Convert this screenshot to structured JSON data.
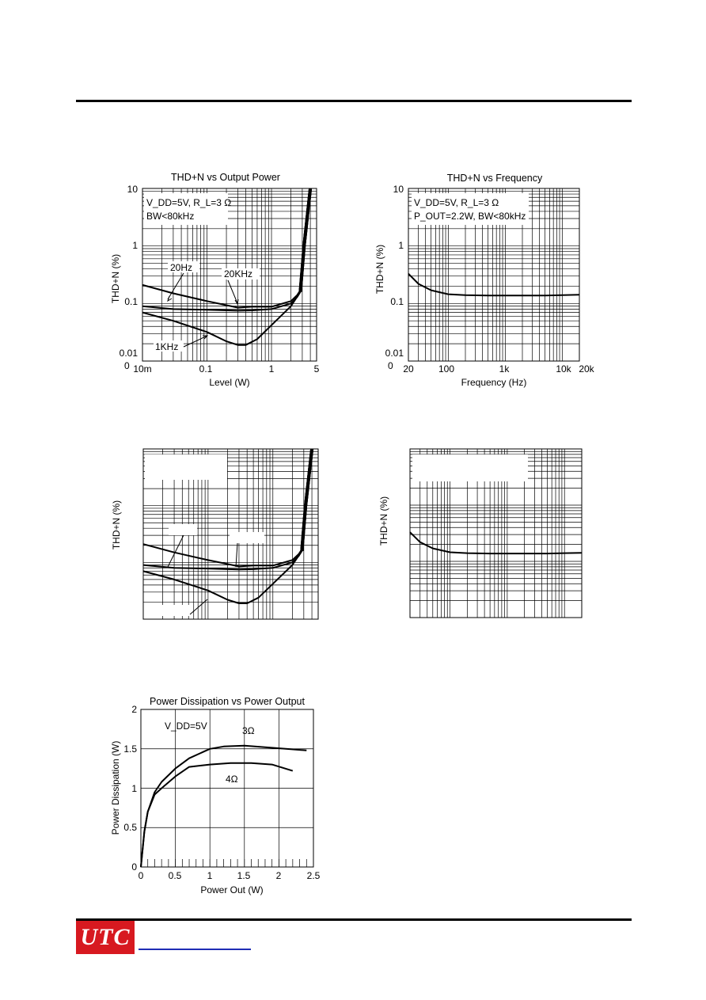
{
  "header": {},
  "footer": {
    "logo_text": "UTC"
  },
  "chart_data": [
    {
      "type": "line",
      "title": "THD+N vs Output Power",
      "xlabel": "Level (W)",
      "ylabel": "THD+N (%)",
      "xscale": "log",
      "yscale": "log",
      "x_ticks": [
        "10m",
        "0.1",
        "1",
        "5"
      ],
      "y_ticks": [
        "10",
        "1",
        "0.1",
        "0.01",
        "0"
      ],
      "annotation": [
        "V_DD=5V, R_L=3 Ω",
        "BW<80kHz"
      ],
      "series": [
        {
          "name": "20Hz",
          "x": [
            0.01,
            0.03,
            0.1,
            0.3,
            0.5,
            1,
            2,
            2.5,
            2.8,
            3.2,
            4
          ],
          "y": [
            0.21,
            0.15,
            0.11,
            0.085,
            0.088,
            0.088,
            0.11,
            0.14,
            0.17,
            1,
            10
          ]
        },
        {
          "name": "20KHz",
          "x": [
            0.01,
            0.03,
            0.1,
            0.3,
            0.5,
            1,
            2,
            2.5,
            2.8,
            3.2,
            4
          ],
          "y": [
            0.09,
            0.08,
            0.078,
            0.075,
            0.076,
            0.08,
            0.1,
            0.13,
            0.16,
            1,
            10
          ]
        },
        {
          "name": "1KHz",
          "x": [
            0.01,
            0.03,
            0.1,
            0.2,
            0.3,
            0.4,
            0.6,
            1,
            2,
            2.8,
            3.2,
            4
          ],
          "y": [
            0.07,
            0.05,
            0.032,
            0.022,
            0.019,
            0.019,
            0.024,
            0.042,
            0.09,
            0.16,
            1,
            10
          ]
        }
      ]
    },
    {
      "type": "line",
      "title": "THD+N vs Frequency",
      "xlabel": "Frequency (Hz)",
      "ylabel": "THD+N (%)",
      "xscale": "log",
      "yscale": "log",
      "x_ticks": [
        "20",
        "100",
        "1k",
        "10k",
        "20k"
      ],
      "y_ticks": [
        "10",
        "1",
        "0.1",
        "0.01",
        "0"
      ],
      "annotation": [
        "V_DD=5V, R_L=3 Ω",
        "P_OUT=2.2W, BW<80kHz"
      ],
      "series": [
        {
          "name": "",
          "x": [
            20,
            30,
            50,
            100,
            200,
            500,
            1000,
            5000,
            10000,
            20000
          ],
          "y": [
            0.33,
            0.22,
            0.17,
            0.145,
            0.14,
            0.138,
            0.138,
            0.138,
            0.14,
            0.142
          ]
        }
      ]
    },
    {
      "type": "line",
      "title": "",
      "ylabel": "THD+N (%)",
      "series": [
        {
          "name": "",
          "x": [
            0.01,
            0.03,
            0.1,
            0.3,
            0.5,
            1,
            2,
            2.5,
            2.8,
            3.2,
            4
          ],
          "y": [
            0.21,
            0.15,
            0.11,
            0.085,
            0.088,
            0.088,
            0.11,
            0.14,
            0.17,
            1,
            10
          ]
        },
        {
          "name": "",
          "x": [
            0.01,
            0.03,
            0.1,
            0.3,
            0.5,
            1,
            2,
            2.5,
            2.8,
            3.2,
            4
          ],
          "y": [
            0.09,
            0.08,
            0.078,
            0.075,
            0.076,
            0.08,
            0.1,
            0.13,
            0.16,
            1,
            10
          ]
        },
        {
          "name": "",
          "x": [
            0.01,
            0.03,
            0.1,
            0.2,
            0.3,
            0.4,
            0.6,
            1,
            2,
            2.8,
            3.2,
            4
          ],
          "y": [
            0.07,
            0.05,
            0.032,
            0.022,
            0.019,
            0.019,
            0.024,
            0.042,
            0.09,
            0.16,
            1,
            10
          ]
        }
      ]
    },
    {
      "type": "line",
      "title": "",
      "ylabel": "THD+N (%)",
      "series": [
        {
          "name": "",
          "x": [
            20,
            30,
            50,
            100,
            200,
            500,
            1000,
            5000,
            10000,
            20000
          ],
          "y": [
            0.33,
            0.22,
            0.17,
            0.145,
            0.14,
            0.138,
            0.138,
            0.138,
            0.14,
            0.142
          ]
        }
      ]
    },
    {
      "type": "line",
      "title": "Power Dissipation vs Power Output",
      "xlabel": "Power Out (W)",
      "ylabel": "Power Dissipation (W)",
      "xlim": [
        0,
        2.5
      ],
      "ylim": [
        0,
        2
      ],
      "x_ticks": [
        "0",
        "0.5",
        "1",
        "1.5",
        "2",
        "2.5"
      ],
      "y_ticks": [
        "0",
        "0.5",
        "1",
        "1.5",
        "2"
      ],
      "annotation": [
        "V_DD=5V"
      ],
      "series": [
        {
          "name": "3Ω",
          "x": [
            0,
            0.05,
            0.1,
            0.2,
            0.3,
            0.5,
            0.7,
            1.0,
            1.2,
            1.5,
            1.8,
            2.1,
            2.4
          ],
          "y": [
            0,
            0.45,
            0.7,
            0.95,
            1.08,
            1.25,
            1.38,
            1.5,
            1.53,
            1.54,
            1.52,
            1.5,
            1.48
          ]
        },
        {
          "name": "4Ω",
          "x": [
            0,
            0.05,
            0.1,
            0.2,
            0.3,
            0.5,
            0.7,
            1.0,
            1.3,
            1.6,
            1.9,
            2.2
          ],
          "y": [
            0,
            0.45,
            0.7,
            0.92,
            1.0,
            1.15,
            1.27,
            1.3,
            1.32,
            1.32,
            1.3,
            1.22
          ]
        }
      ]
    }
  ]
}
